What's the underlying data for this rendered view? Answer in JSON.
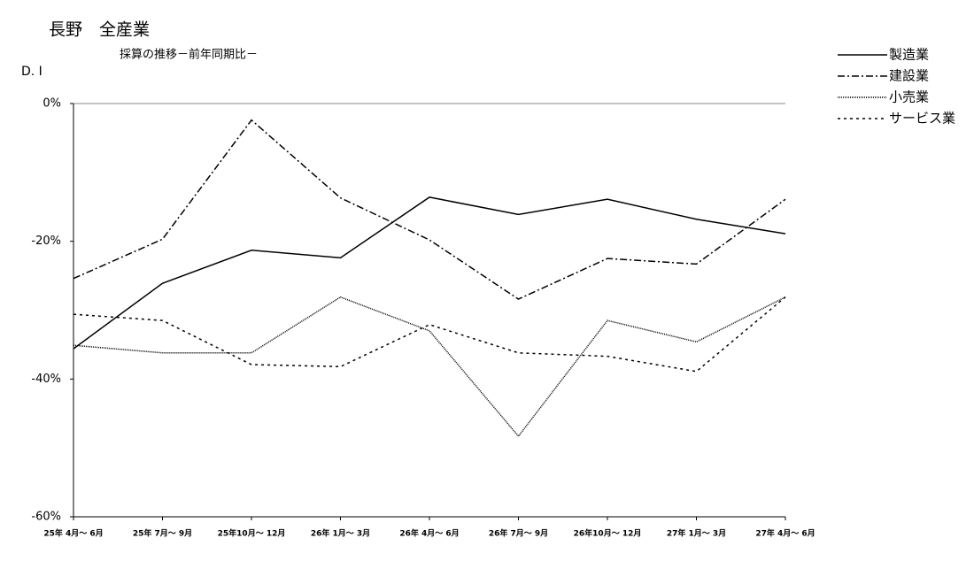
{
  "chart_data": {
    "type": "line",
    "title": "長野　全産業",
    "subtitle": "採算の推移－前年同期比－",
    "y_label": "D. I",
    "categories": [
      "25年 4月～ 6月",
      "25年 7月～ 9月",
      "25年10月～ 12月",
      "26年 1月～ 3月",
      "26年 4月～ 6月",
      "26年 7月～ 9月",
      "26年10月～ 12月",
      "27年 1月～ 3月",
      "27年 4月～ 6月"
    ],
    "series": [
      {
        "name": "製造業",
        "color": "#000000",
        "dash": "none",
        "values": [
          -35.6,
          -26.1,
          -21.3,
          -22.4,
          -13.6,
          -16.1,
          -13.9,
          -16.8,
          -18.9
        ]
      },
      {
        "name": "建設業",
        "color": "#000000",
        "dash": "8 3 2 3",
        "values": [
          -25.4,
          -19.7,
          -2.4,
          -13.7,
          -19.8,
          -28.4,
          -22.5,
          -23.3,
          -13.9
        ]
      },
      {
        "name": "小売業",
        "color": "#000000",
        "dash": "1 1",
        "values": [
          -35.1,
          -36.2,
          -36.2,
          -28.1,
          -33.0,
          -48.3,
          -31.5,
          -34.6,
          -28.1
        ]
      },
      {
        "name": "サービス業",
        "color": "#000000",
        "dash": "3 4",
        "values": [
          -30.6,
          -31.5,
          -37.9,
          -38.2,
          -32.1,
          -36.2,
          -36.7,
          -38.9,
          -28.1
        ]
      }
    ],
    "ylim": [
      -60,
      0
    ],
    "yticks": [
      {
        "value": -60,
        "label": "-60%"
      },
      {
        "value": -40,
        "label": "-40%"
      },
      {
        "value": -20,
        "label": "-20%"
      },
      {
        "value": 0,
        "label": "0%"
      }
    ],
    "legend": "top-right"
  }
}
